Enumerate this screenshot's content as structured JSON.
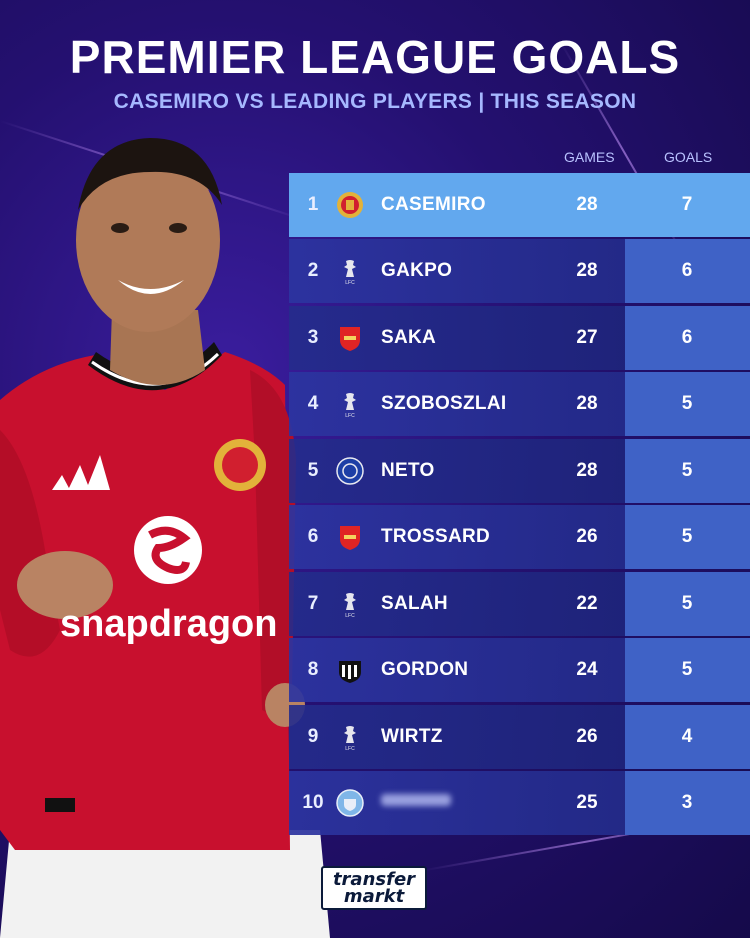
{
  "header": {
    "title": "PREMIER LEAGUE GOALS",
    "subtitle": "CASEMIRO VS LEADING PLAYERS | THIS SEASON"
  },
  "table": {
    "columns": {
      "games": "GAMES",
      "goals": "GOALS"
    },
    "rows": [
      {
        "rank": "1",
        "club": "manchester-united",
        "name": "CASEMIRO",
        "games": "28",
        "goals": "7"
      },
      {
        "rank": "2",
        "club": "liverpool",
        "name": "GAKPO",
        "games": "28",
        "goals": "6"
      },
      {
        "rank": "3",
        "club": "arsenal",
        "name": "SAKA",
        "games": "27",
        "goals": "6"
      },
      {
        "rank": "4",
        "club": "liverpool",
        "name": "SZOBOSZLAI",
        "games": "28",
        "goals": "5"
      },
      {
        "rank": "5",
        "club": "chelsea",
        "name": "NETO",
        "games": "28",
        "goals": "5"
      },
      {
        "rank": "6",
        "club": "arsenal",
        "name": "TROSSARD",
        "games": "26",
        "goals": "5"
      },
      {
        "rank": "7",
        "club": "liverpool",
        "name": "SALAH",
        "games": "22",
        "goals": "5"
      },
      {
        "rank": "8",
        "club": "newcastle",
        "name": "GORDON",
        "games": "24",
        "goals": "5"
      },
      {
        "rank": "9",
        "club": "liverpool",
        "name": "WIRTZ",
        "games": "26",
        "goals": "4"
      },
      {
        "rank": "10",
        "club": "manchester-city",
        "name": "",
        "games": "25",
        "goals": "3"
      }
    ]
  },
  "player_image": {
    "sponsor": "Snapdragon",
    "colors": {
      "shirt": "#c8102e",
      "shorts": "#f4f4f4"
    }
  },
  "branding": {
    "logo_line1": "transfer",
    "logo_line2": "markt"
  },
  "colors": {
    "background": "#241070",
    "highlight_row": "#62a8ee",
    "goals_column": "#3f62c6",
    "subtitle": "#a6b8ff"
  }
}
